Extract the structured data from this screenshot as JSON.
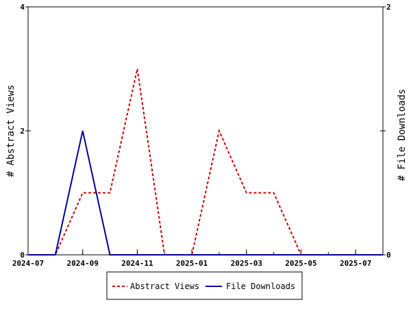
{
  "chart_data": {
    "type": "line",
    "title": "",
    "xlabel": "",
    "x_ticks": [
      "2024-07",
      "2024-09",
      "2024-11",
      "2025-01",
      "2025-03",
      "2025-05",
      "2025-07"
    ],
    "x": [
      "2024-07",
      "2024-08",
      "2024-09",
      "2024-10",
      "2024-11",
      "2024-12",
      "2025-01",
      "2025-02",
      "2025-03",
      "2025-04",
      "2025-05",
      "2025-06",
      "2025-07",
      "2025-08"
    ],
    "xlim": [
      "2024-07",
      "2025-08"
    ],
    "axes": {
      "left": {
        "label": "# Abstract Views",
        "ylim": [
          0,
          4
        ],
        "ticks": [
          "0",
          "2",
          "4"
        ]
      },
      "right": {
        "label": "# File Downloads",
        "ylim": [
          0,
          2
        ],
        "ticks": [
          "0",
          "1",
          "2"
        ]
      }
    },
    "series": [
      {
        "name": "Abstract Views",
        "axis": "left",
        "color": "#cc0000",
        "style": "dashed",
        "values": [
          0,
          0,
          1,
          1,
          3,
          0,
          0,
          2,
          1,
          1,
          0,
          0,
          0,
          0
        ]
      },
      {
        "name": "File Downloads",
        "axis": "right",
        "color": "#000099",
        "style": "solid",
        "values": [
          0,
          0,
          1,
          0,
          0,
          0,
          0,
          0,
          0,
          0,
          0,
          0,
          0,
          0
        ]
      }
    ],
    "grid": false,
    "legend_position": "bottom"
  }
}
